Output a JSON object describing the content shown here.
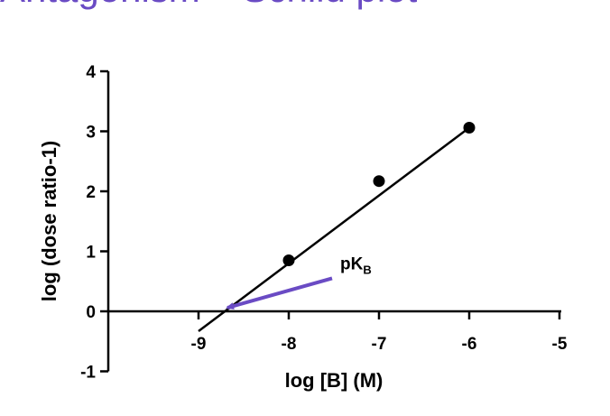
{
  "page": {
    "title": "Antagonism – Schild plot"
  },
  "colors": {
    "title": "#6a4bc4",
    "arrow": "#6a4bc4",
    "marks": "#000000"
  },
  "chart_data": {
    "type": "scatter",
    "xlabel": "log [B] (M)",
    "ylabel": "log (dose ratio-1)",
    "xlim": [
      -10,
      -5
    ],
    "ylim": [
      -1,
      4
    ],
    "x_ticks": [
      -9,
      -8,
      -7,
      -6,
      -5
    ],
    "y_ticks": [
      -1,
      0,
      1,
      2,
      3,
      4
    ],
    "grid": false,
    "series": [
      {
        "points": [
          {
            "x": -8,
            "y": 0.85
          },
          {
            "x": -7,
            "y": 2.17
          },
          {
            "x": -6,
            "y": 3.06
          }
        ]
      }
    ],
    "fit_line": {
      "from": {
        "x": -9.0,
        "y": -0.18
      },
      "to": {
        "x": -6.0,
        "y": 3.06
      }
    },
    "annotation": {
      "text_main": "pK",
      "text_sub": "B",
      "x": -7.55,
      "y": 0.55,
      "arrow_from": {
        "x": -7.5,
        "y": 0.52
      },
      "arrow_to": {
        "x": -8.68,
        "y": 0.06
      }
    }
  }
}
